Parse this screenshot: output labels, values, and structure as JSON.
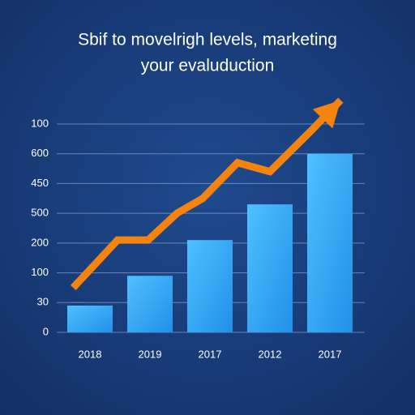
{
  "chart_data": {
    "type": "bar",
    "title": [
      "Sbif to movelrigh levels, marketing",
      "your evaluduction"
    ],
    "categories": [
      "2018",
      "2019",
      "2017",
      "2012",
      "2017"
    ],
    "ylim": [
      0,
      7
    ],
    "yticks": [
      {
        "value": 0,
        "label": "0"
      },
      {
        "value": 1,
        "label": "30"
      },
      {
        "value": 2,
        "label": "100"
      },
      {
        "value": 3,
        "label": "200"
      },
      {
        "value": 4,
        "label": "500"
      },
      {
        "value": 5,
        "label": "450"
      },
      {
        "value": 6,
        "label": "600"
      },
      {
        "value": 7,
        "label": "100"
      }
    ],
    "grid": true,
    "series": [
      {
        "type": "bar",
        "color": "#3aa6f0",
        "values": [
          0.9,
          1.9,
          3.1,
          4.3,
          6.0
        ]
      },
      {
        "type": "line",
        "color": "#f5840f",
        "x": [
          -0.28,
          0.46,
          0.97,
          1.45,
          1.88,
          2.46,
          3.0,
          3.7,
          4.18
        ],
        "values": [
          1.5,
          3.1,
          3.1,
          4.0,
          4.5,
          5.7,
          5.4,
          6.8,
          7.8
        ]
      }
    ]
  }
}
